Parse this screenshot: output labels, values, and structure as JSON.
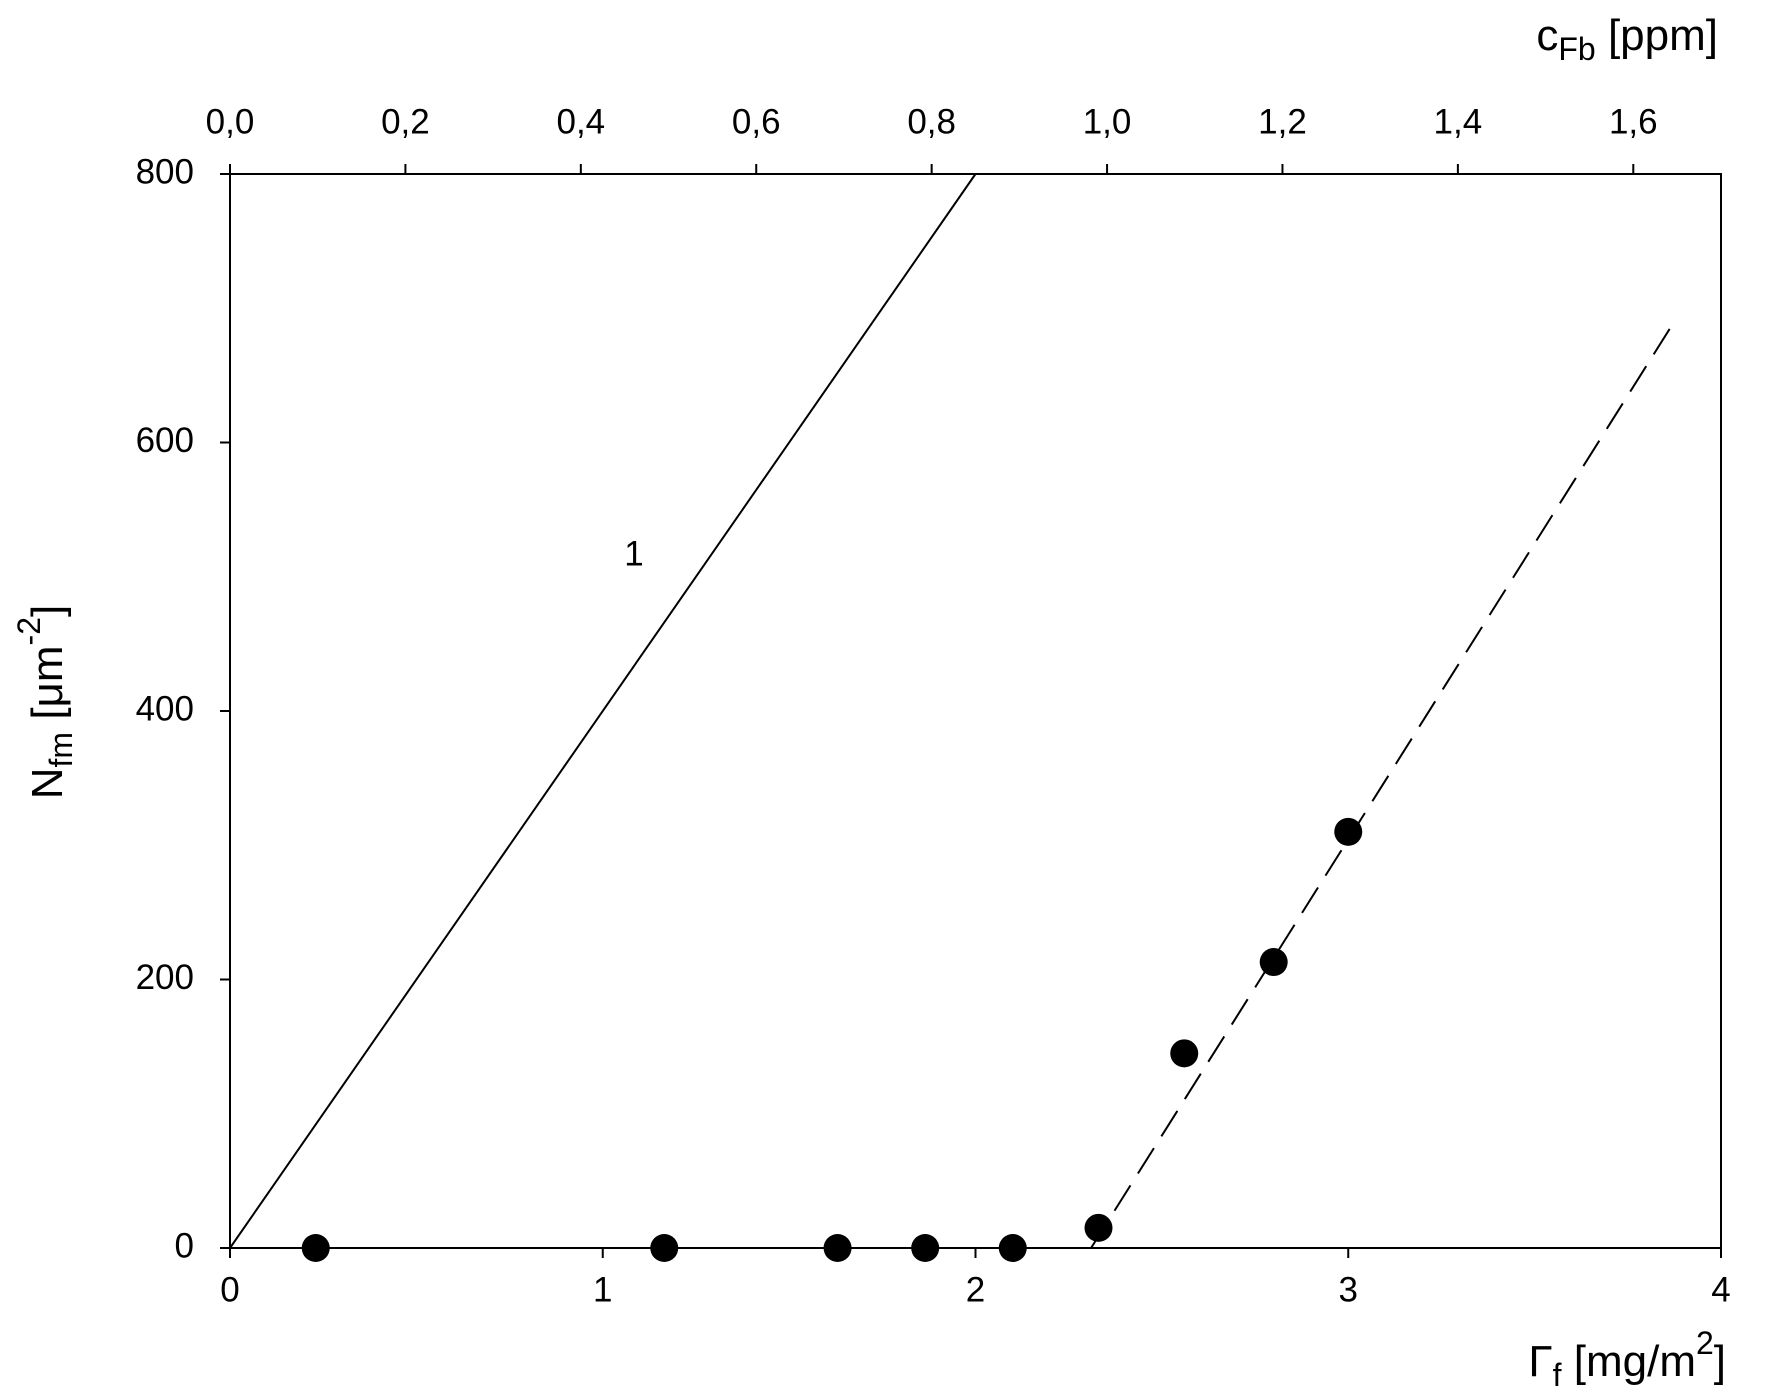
{
  "chart_data": {
    "type": "scatter",
    "xlabel": [
      "Γ",
      "f",
      " [mg/m",
      "2",
      "]"
    ],
    "ylabel": [
      "N",
      "fm",
      " [μm",
      "-2",
      "]"
    ],
    "x2label": [
      "c",
      "Fb",
      " [ppm]"
    ],
    "annotations": [
      "1"
    ],
    "xlim": [
      0,
      4
    ],
    "xticks": [
      0,
      1,
      2,
      3,
      4
    ],
    "x2lim": [
      0,
      1.7
    ],
    "x2ticks": [
      {
        "value": 0,
        "label": "0,0"
      },
      {
        "value": 0.2,
        "label": "0,2"
      },
      {
        "value": 0.4,
        "label": "0,4"
      },
      {
        "value": 0.6,
        "label": "0,6"
      },
      {
        "value": 0.8,
        "label": "0,8"
      },
      {
        "value": 1.0,
        "label": "1,0"
      },
      {
        "value": 1.2,
        "label": "1,2"
      },
      {
        "value": 1.4,
        "label": "1,4"
      },
      {
        "value": 1.6,
        "label": "1,6"
      }
    ],
    "ylim": [
      0,
      800
    ],
    "yticks": [
      0,
      200,
      400,
      600,
      800
    ],
    "series": [
      {
        "type": "scatter",
        "color": "#000000",
        "x": [
          0.23,
          1.165,
          1.63,
          1.865,
          2.1,
          2.33,
          2.56,
          2.8,
          3.0
        ],
        "values": [
          0,
          0,
          0,
          0,
          0,
          15,
          145,
          213,
          310
        ]
      },
      {
        "type": "line",
        "color": "#000000",
        "style": "solid",
        "x": [
          0,
          2.0
        ],
        "values": [
          0,
          800
        ]
      },
      {
        "type": "line",
        "color": "#000000",
        "style": "dashed",
        "x": [
          2.31,
          3.87
        ],
        "values": [
          0,
          688
        ]
      }
    ]
  }
}
